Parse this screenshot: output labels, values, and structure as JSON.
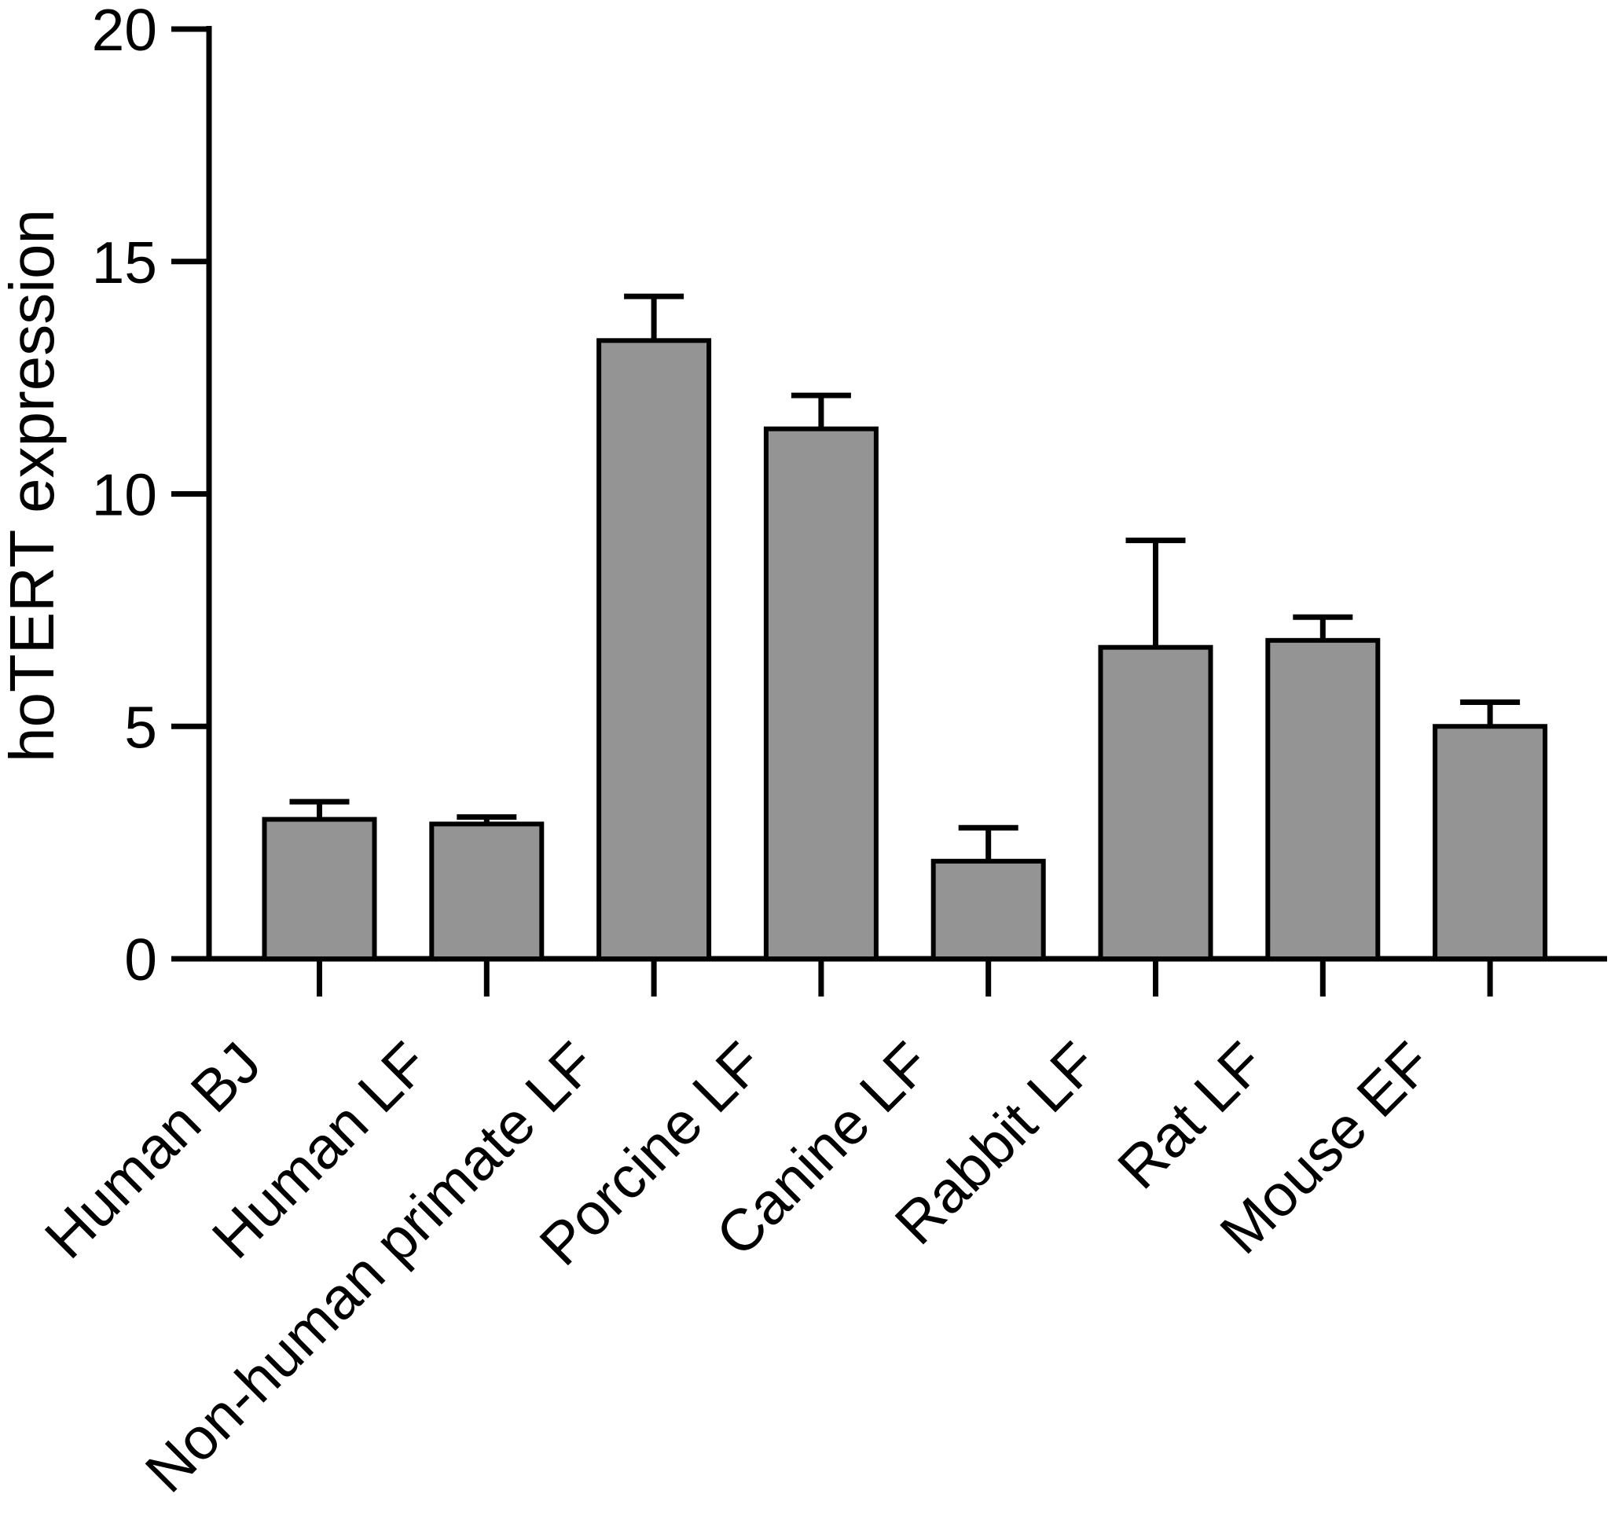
{
  "figure": {
    "background": "#ffffff",
    "axis_color": "#000000"
  },
  "chart_data": {
    "type": "bar",
    "title": "",
    "xlabel": "",
    "ylabel": "hoTERT expression",
    "ylim": [
      0,
      20
    ],
    "yticks": [
      0,
      5,
      10,
      15,
      20
    ],
    "grid": false,
    "legend": null,
    "bar_fill": "#949494",
    "bar_stroke": "#000000",
    "error_bars": "upper-only",
    "categories": [
      "Human BJ",
      "Human LF",
      "Non-human primate LF",
      "Porcine LF",
      "Canine LF",
      "Rabbit LF",
      "Rat LF",
      "Mouse EF"
    ],
    "values": [
      3.0,
      2.9,
      13.3,
      11.4,
      2.1,
      6.7,
      6.85,
      5.0
    ],
    "errors": [
      0.38,
      0.15,
      0.95,
      0.72,
      0.72,
      2.3,
      0.5,
      0.52
    ]
  }
}
